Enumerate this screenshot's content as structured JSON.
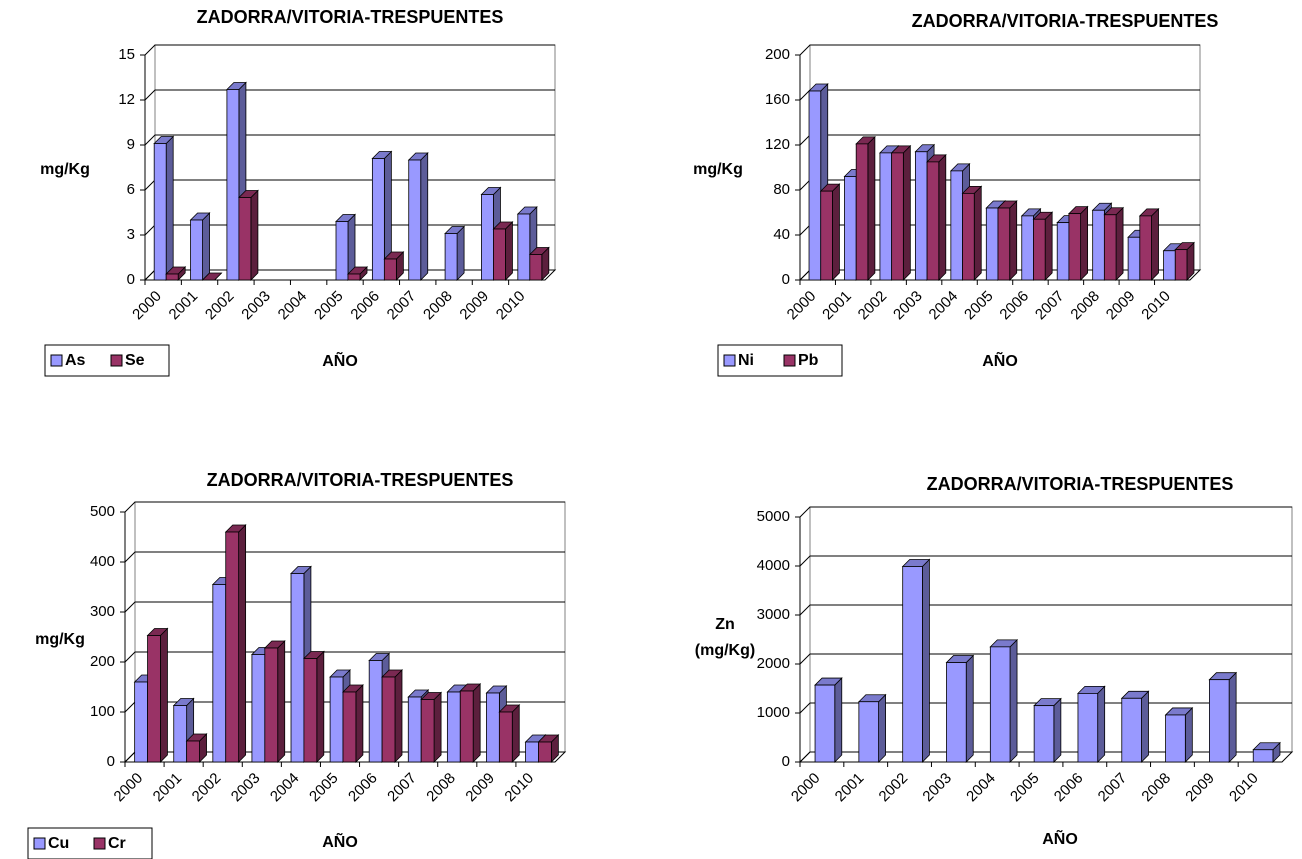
{
  "chart_data": [
    {
      "type": "bar",
      "title": "ZADORRA/VITORIA-TRESPUENTES",
      "y_label": "mg/Kg",
      "x_label": "AÑO",
      "categories": [
        "2000",
        "2001",
        "2002",
        "2003",
        "2004",
        "2005",
        "2006",
        "2007",
        "2008",
        "2009",
        "2010"
      ],
      "series": [
        {
          "name": "As",
          "color": "#9999ff",
          "values": [
            9.1,
            4.0,
            12.7,
            null,
            null,
            3.9,
            8.1,
            8.0,
            3.1,
            5.7,
            4.4
          ]
        },
        {
          "name": "Se",
          "color": "#993366",
          "values": [
            0.4,
            0,
            5.5,
            null,
            null,
            0.4,
            1.4,
            null,
            null,
            3.4,
            1.7
          ]
        }
      ],
      "ylim": [
        0,
        15
      ],
      "yticks": [
        0,
        3,
        6,
        9,
        12,
        15
      ],
      "grid": true,
      "legend": "bottom-left"
    },
    {
      "type": "bar",
      "title": "ZADORRA/VITORIA-TRESPUENTES",
      "y_label": "mg/Kg",
      "x_label": "AÑO",
      "categories": [
        "2000",
        "2001",
        "2002",
        "2003",
        "2004",
        "2005",
        "2006",
        "2007",
        "2008",
        "2009",
        "2010"
      ],
      "series": [
        {
          "name": "Ni",
          "color": "#9999ff",
          "values": [
            168,
            92,
            113,
            114,
            97,
            64,
            57,
            51,
            62,
            38,
            26
          ]
        },
        {
          "name": "Pb",
          "color": "#993366",
          "values": [
            79,
            121,
            113,
            105,
            77,
            64,
            54,
            59,
            58,
            57,
            27
          ]
        }
      ],
      "ylim": [
        0,
        200
      ],
      "yticks": [
        0,
        40,
        80,
        120,
        160,
        200
      ],
      "grid": true,
      "legend": "bottom-left"
    },
    {
      "type": "bar",
      "title": "ZADORRA/VITORIA-TRESPUENTES",
      "y_label": "mg/Kg",
      "x_label": "AÑO",
      "categories": [
        "2000",
        "2001",
        "2002",
        "2003",
        "2004",
        "2005",
        "2006",
        "2007",
        "2008",
        "2009",
        "2010"
      ],
      "series": [
        {
          "name": "Cu",
          "color": "#9999ff",
          "values": [
            160,
            113,
            355,
            215,
            377,
            170,
            203,
            130,
            140,
            138,
            40
          ]
        },
        {
          "name": "Cr",
          "color": "#993366",
          "values": [
            253,
            42,
            460,
            228,
            207,
            140,
            170,
            125,
            142,
            100,
            40
          ]
        }
      ],
      "ylim": [
        0,
        500
      ],
      "yticks": [
        0,
        100,
        200,
        300,
        400,
        500
      ],
      "grid": true,
      "legend": "bottom-left"
    },
    {
      "type": "bar",
      "title": "ZADORRA/VITORIA-TRESPUENTES",
      "y_label": [
        "Zn",
        "(mg/Kg)"
      ],
      "x_label": "AÑO",
      "categories": [
        "2000",
        "2001",
        "2002",
        "2003",
        "2004",
        "2005",
        "2006",
        "2007",
        "2008",
        "2009",
        "2010"
      ],
      "series": [
        {
          "name": "Zn",
          "color": "#9999ff",
          "values": [
            1570,
            1230,
            3990,
            2030,
            2350,
            1150,
            1400,
            1300,
            960,
            1680,
            250
          ]
        }
      ],
      "ylim": [
        0,
        5000
      ],
      "yticks": [
        0,
        1000,
        2000,
        3000,
        4000,
        5000
      ],
      "grid": true,
      "legend": null
    }
  ]
}
